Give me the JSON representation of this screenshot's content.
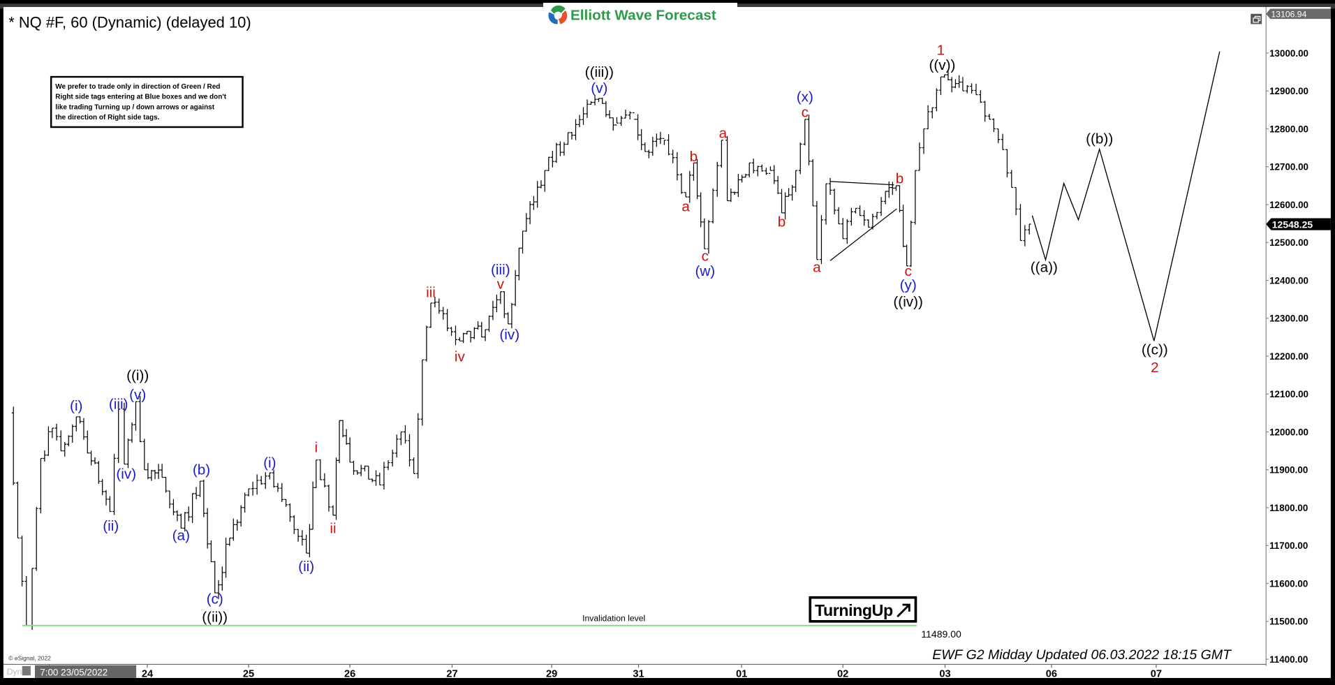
{
  "header": {
    "symbol_title": "* NQ #F, 60 (Dynamic) (delayed 10)",
    "logo_text": "Elliott Wave Forecast",
    "logo_colors": [
      "#2e9a4a",
      "#1e6fb8",
      "#e2532b"
    ]
  },
  "notice": {
    "lines": [
      "We prefer to trade only in direction of Green / Red",
      "Right side tags entering at Blue boxes and we don't",
      "like trading Turning up / down arrows or against",
      "the direction of Right side tags."
    ]
  },
  "turning_badge": {
    "label": "TurningUp",
    "icon": "arrow-up-right-icon"
  },
  "footer": {
    "copyright": "© eSignal, 2022",
    "update_text": "EWF G2 Midday Updated 06.03.2022 18:15 GMT",
    "dyn_label": "Dyn",
    "start_label": "7:00 23/05/2022"
  },
  "colors": {
    "black": "#000000",
    "blue": "#1a1ad0",
    "red": "#d01010",
    "invalidation": "#7fe07f",
    "last_price_bg": "#000000",
    "top_price_bg": "#6a6a6a"
  },
  "chart_data": {
    "type": "bar",
    "style": "ohlc",
    "interval": "60",
    "ylim": [
      11400,
      13106.94
    ],
    "y_ticks": [
      "11400.00",
      "11500.00",
      "11600.00",
      "11700.00",
      "11800.00",
      "11900.00",
      "12000.00",
      "12100.00",
      "12200.00",
      "12300.00",
      "12400.00",
      "12500.00",
      "12600.00",
      "12700.00",
      "12800.00",
      "12900.00",
      "13000.00"
    ],
    "y_top_label": "13106.94",
    "last_price": "12548.25",
    "x_ticks": [
      {
        "date": "2022-05-24",
        "label": "24"
      },
      {
        "date": "2022-05-25",
        "label": "25"
      },
      {
        "date": "2022-05-26",
        "label": "26"
      },
      {
        "date": "2022-05-27",
        "label": "27"
      },
      {
        "date": "2022-05-29",
        "label": "29"
      },
      {
        "date": "2022-05-31",
        "label": "31"
      },
      {
        "date": "2022-06-01",
        "label": "01"
      },
      {
        "date": "2022-06-02",
        "label": "02"
      },
      {
        "date": "2022-06-03",
        "label": "03"
      },
      {
        "date": "2022-06-06",
        "label": "06"
      },
      {
        "date": "2022-06-07",
        "label": "07"
      }
    ],
    "price_pivots": [
      [
        "2022-05-23 00:00",
        12050
      ],
      [
        "2022-05-23 01:30",
        11720
      ],
      [
        "2022-05-23 03:00",
        11489
      ],
      [
        "2022-05-23 04:00",
        11640
      ],
      [
        "2022-05-23 05:30",
        11930
      ],
      [
        "2022-05-23 07:30",
        12010
      ],
      [
        "2022-05-23 09:00",
        11950
      ],
      [
        "2022-05-23 11:40",
        12040
      ],
      [
        "2022-05-23 17:30",
        11790
      ],
      [
        "2022-05-23 19:00",
        12060
      ],
      [
        "2022-05-23 20:00",
        11915
      ],
      [
        "2022-05-23 22:00",
        12080
      ],
      [
        "2022-05-23 23:30",
        11900
      ],
      [
        "2022-05-24 03:30",
        11880
      ],
      [
        "2022-05-24 08:00",
        11746
      ],
      [
        "2022-05-24 12:30",
        11870
      ],
      [
        "2022-05-24 16:00",
        11575
      ],
      [
        "2022-05-24 19:30",
        11720
      ],
      [
        "2022-05-25 00:00",
        11850
      ],
      [
        "2022-05-25 05:00",
        11892
      ],
      [
        "2022-05-25 13:40",
        11680
      ],
      [
        "2022-05-25 16:00",
        11926
      ],
      [
        "2022-05-25 20:00",
        11780
      ],
      [
        "2022-05-25 21:30",
        12030
      ],
      [
        "2022-05-26 00:00",
        11920
      ],
      [
        "2022-05-26 07:00",
        11860
      ],
      [
        "2022-05-26 12:00",
        12000
      ],
      [
        "2022-05-26 15:00",
        11890
      ],
      [
        "2022-05-26 17:00",
        12190
      ],
      [
        "2022-05-26 19:00",
        12340
      ],
      [
        "2022-05-27 01:50",
        12240
      ],
      [
        "2022-05-27 08:00",
        12270
      ],
      [
        "2022-05-27 11:40",
        12370
      ],
      [
        "2022-05-27 13:30",
        12285
      ],
      [
        "2022-05-27 17:00",
        12530
      ],
      [
        "2022-05-27 22:20",
        12690
      ],
      [
        "2022-05-29 04:30",
        12790
      ],
      [
        "2022-05-29 13:00",
        12880
      ],
      [
        "2022-05-29 18:00",
        12815
      ],
      [
        "2022-05-29 22:50",
        12825
      ],
      [
        "2022-05-31 01:30",
        12740
      ],
      [
        "2022-05-31 06:00",
        12770
      ],
      [
        "2022-05-31 11:00",
        12620
      ],
      [
        "2022-05-31 12:50",
        12710
      ],
      [
        "2022-05-31 15:20",
        12483
      ],
      [
        "2022-05-31 19:20",
        12770
      ],
      [
        "2022-05-31 20:40",
        12610
      ],
      [
        "2022-06-01 01:50",
        12710
      ],
      [
        "2022-06-01 06:50",
        12690
      ],
      [
        "2022-06-01 09:30",
        12578
      ],
      [
        "2022-06-01 12:50",
        12690
      ],
      [
        "2022-06-01 15:00",
        12825
      ],
      [
        "2022-06-01 17:50",
        12455
      ],
      [
        "2022-06-01 20:00",
        12655
      ],
      [
        "2022-06-02 00:00",
        12510
      ],
      [
        "2022-06-02 03:00",
        12590
      ],
      [
        "2022-06-02 06:00",
        12540
      ],
      [
        "2022-06-02 10:00",
        12635
      ],
      [
        "2022-06-02 12:30",
        12650
      ],
      [
        "2022-06-02 15:00",
        12438
      ],
      [
        "2022-06-02 17:00",
        12690
      ],
      [
        "2022-06-02 19:00",
        12800
      ],
      [
        "2022-06-02 23:00",
        12937
      ],
      [
        "2022-06-03 04:00",
        12900
      ],
      [
        "2022-06-03 07:00",
        12890
      ],
      [
        "2022-06-03 10:00",
        12825
      ],
      [
        "2022-06-03 13:00",
        12745
      ],
      [
        "2022-06-03 15:00",
        12645
      ],
      [
        "2022-06-03 17:00",
        12505
      ],
      [
        "2022-06-03 19:00",
        12548.25
      ]
    ],
    "projection_path": [
      [
        "2022-06-03 19:40",
        12571
      ],
      [
        "2022-06-03 22:40",
        12454
      ],
      [
        "2022-06-06 02:50",
        12656
      ],
      [
        "2022-06-06 06:10",
        12560
      ],
      [
        "2022-06-06 11:00",
        12746
      ],
      [
        "2022-06-06 23:30",
        12240
      ],
      [
        "2022-06-07 14:40",
        13004
      ]
    ],
    "triangle_lines": [
      [
        [
          "2022-06-01 21:00",
          12661
        ],
        [
          "2022-06-02 12:00",
          12652
        ]
      ],
      [
        [
          "2022-06-01 21:00",
          12452
        ],
        [
          "2022-06-02 12:40",
          12589
        ]
      ]
    ],
    "invalidation": {
      "price": 11489,
      "label": "Invalidation level",
      "value_label": "11489.00",
      "end": "2022-06-02 17:20"
    },
    "wave_labels": [
      {
        "t": "((i))",
        "c": "black",
        "at": [
          "2022-05-23 22:20",
          12150
        ]
      },
      {
        "t": "(v)",
        "c": "blue",
        "at": [
          "2022-05-23 22:20",
          12099
        ]
      },
      {
        "t": "(iii)",
        "c": "blue",
        "at": [
          "2022-05-23 19:00",
          12074
        ]
      },
      {
        "t": "(i)",
        "c": "blue",
        "at": [
          "2022-05-23 11:40",
          12070
        ]
      },
      {
        "t": "(iv)",
        "c": "blue",
        "at": [
          "2022-05-23 20:20",
          11890
        ]
      },
      {
        "t": "(ii)",
        "c": "blue",
        "at": [
          "2022-05-23 17:40",
          11753
        ]
      },
      {
        "t": "(a)",
        "c": "blue",
        "at": [
          "2022-05-24 08:00",
          11728
        ]
      },
      {
        "t": "(b)",
        "c": "blue",
        "at": [
          "2022-05-24 12:50",
          11901
        ]
      },
      {
        "t": "(c)",
        "c": "blue",
        "at": [
          "2022-05-24 16:00",
          11560
        ]
      },
      {
        "t": "((ii))",
        "c": "black",
        "at": [
          "2022-05-24 16:00",
          11512
        ]
      },
      {
        "t": "(i)",
        "c": "blue",
        "at": [
          "2022-05-25 05:00",
          11920
        ]
      },
      {
        "t": "(ii)",
        "c": "blue",
        "at": [
          "2022-05-25 13:40",
          11646
        ]
      },
      {
        "t": "i",
        "c": "red",
        "at": [
          "2022-05-25 16:00",
          11960
        ]
      },
      {
        "t": "ii",
        "c": "red",
        "at": [
          "2022-05-25 20:00",
          11746
        ]
      },
      {
        "t": "iii",
        "c": "red",
        "at": [
          "2022-05-26 19:00",
          12369
        ]
      },
      {
        "t": "iv",
        "c": "red",
        "at": [
          "2022-05-27 01:50",
          12200
        ]
      },
      {
        "t": "(iii)",
        "c": "blue",
        "at": [
          "2022-05-27 11:40",
          12429
        ]
      },
      {
        "t": "v",
        "c": "red",
        "at": [
          "2022-05-27 11:40",
          12391
        ]
      },
      {
        "t": "(iv)",
        "c": "blue",
        "at": [
          "2022-05-27 13:50",
          12258
        ]
      },
      {
        "t": "((iii))",
        "c": "black",
        "at": [
          "2022-05-29 13:10",
          12951
        ]
      },
      {
        "t": "(v)",
        "c": "blue",
        "at": [
          "2022-05-29 13:10",
          12908
        ]
      },
      {
        "t": "a",
        "c": "red",
        "at": [
          "2022-05-31 11:00",
          12596
        ]
      },
      {
        "t": "b",
        "c": "red",
        "at": [
          "2022-05-31 12:50",
          12728
        ]
      },
      {
        "t": "c",
        "c": "red",
        "at": [
          "2022-05-31 15:30",
          12465
        ]
      },
      {
        "t": "(w)",
        "c": "blue",
        "at": [
          "2022-05-31 15:30",
          12425
        ]
      },
      {
        "t": "a",
        "c": "red",
        "at": [
          "2022-05-31 19:40",
          12789
        ]
      },
      {
        "t": "b",
        "c": "red",
        "at": [
          "2022-06-01 09:30",
          12555
        ]
      },
      {
        "t": "c",
        "c": "red",
        "at": [
          "2022-06-01 15:00",
          12845
        ]
      },
      {
        "t": "(x)",
        "c": "blue",
        "at": [
          "2022-06-01 15:00",
          12885
        ]
      },
      {
        "t": "a",
        "c": "red",
        "at": [
          "2022-06-01 17:50",
          12436
        ]
      },
      {
        "t": "b",
        "c": "red",
        "at": [
          "2022-06-02 13:20",
          12670
        ]
      },
      {
        "t": "c",
        "c": "red",
        "at": [
          "2022-06-02 15:20",
          12425
        ]
      },
      {
        "t": "(y)",
        "c": "blue",
        "at": [
          "2022-06-02 15:20",
          12389
        ]
      },
      {
        "t": "((iv))",
        "c": "black",
        "at": [
          "2022-06-02 15:20",
          12344
        ]
      },
      {
        "t": "1",
        "c": "red",
        "at": [
          "2022-06-02 23:00",
          13009
        ]
      },
      {
        "t": "((v))",
        "c": "black",
        "at": [
          "2022-06-02 23:20",
          12969
        ]
      },
      {
        "t": "((a))",
        "c": "black",
        "at": [
          "2022-06-03 22:20",
          12436
        ]
      },
      {
        "t": "((b))",
        "c": "black",
        "at": [
          "2022-06-06 11:00",
          12775
        ]
      },
      {
        "t": "((c))",
        "c": "black",
        "at": [
          "2022-06-06 23:40",
          12218
        ]
      },
      {
        "t": "2",
        "c": "red",
        "at": [
          "2022-06-06 23:40",
          12171
        ]
      }
    ]
  }
}
